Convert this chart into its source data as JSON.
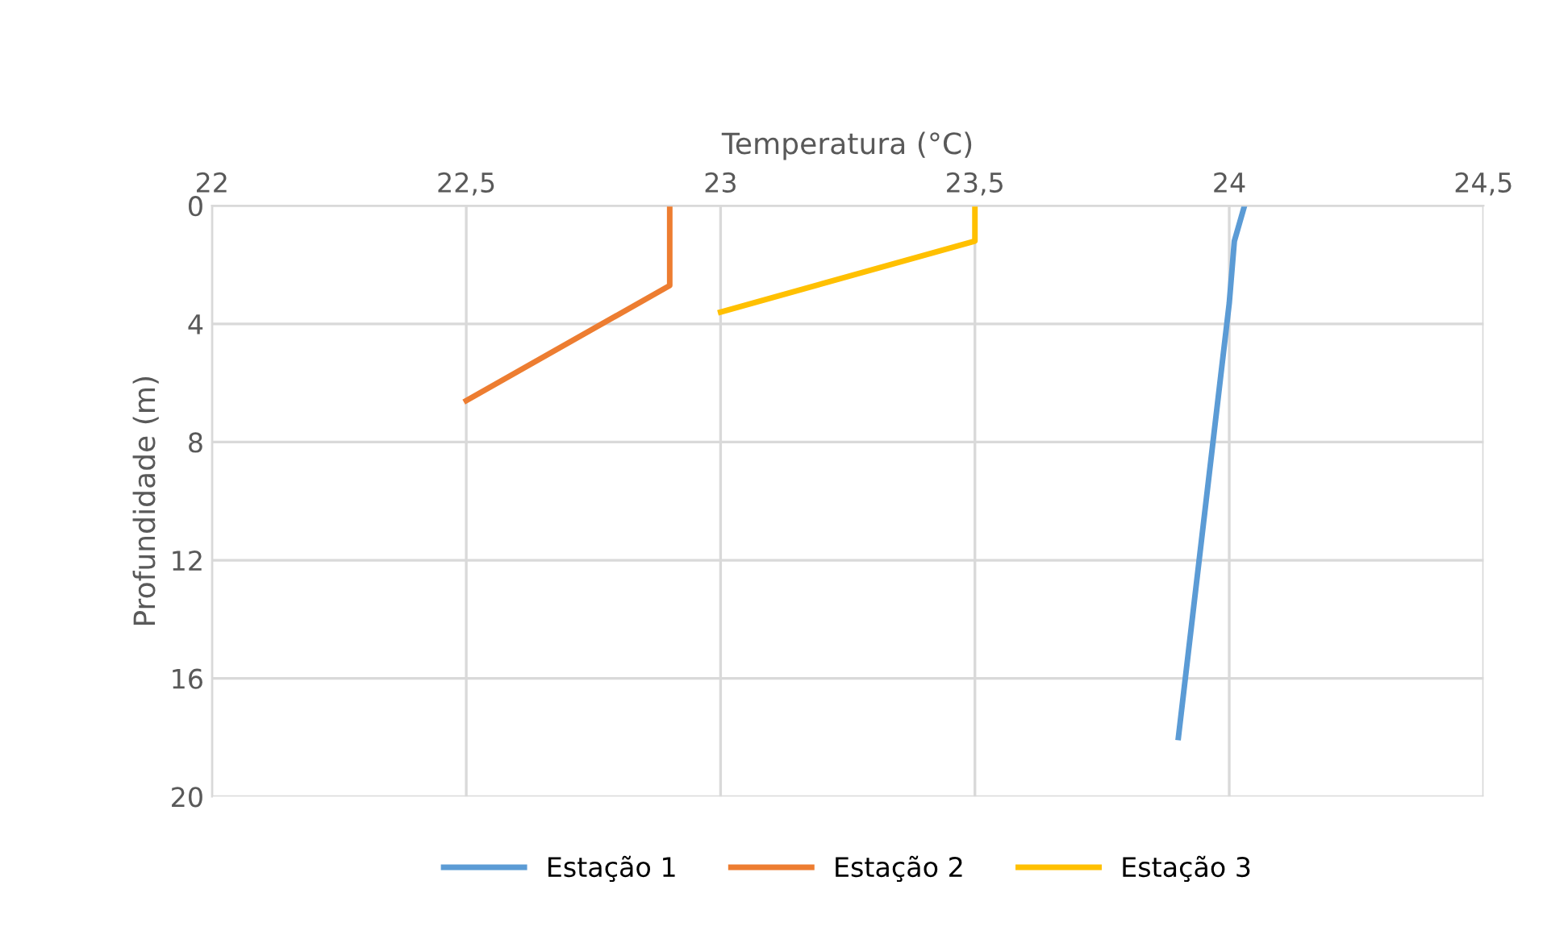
{
  "chart_data": {
    "type": "line",
    "xlabel": "Temperatura (°C)",
    "ylabel": "Profundidade (m)",
    "xlim": [
      22,
      24.5
    ],
    "xticks": [
      {
        "value": 22,
        "label": "22"
      },
      {
        "value": 22.5,
        "label": "22,5"
      },
      {
        "value": 23,
        "label": "23"
      },
      {
        "value": 23.5,
        "label": "23,5"
      },
      {
        "value": 24,
        "label": "24"
      },
      {
        "value": 24.5,
        "label": "24,5"
      }
    ],
    "ylim": [
      20,
      0
    ],
    "yticks": [
      0,
      4,
      8,
      12,
      16,
      20
    ],
    "grid": true,
    "legend": "bottom",
    "marker": "none",
    "line_style": "solid",
    "series": [
      {
        "name": "Estação 1",
        "color": "#5b9bd5",
        "x": [
          24.03,
          24.01,
          24.0,
          23.9
        ],
        "values": [
          0,
          1.2,
          3.3,
          18
        ]
      },
      {
        "name": "Estação 2",
        "color": "#ed7d31",
        "x": [
          22.9,
          22.9,
          22.5
        ],
        "values": [
          0,
          2.7,
          6.6
        ]
      },
      {
        "name": "Estação 3",
        "color": "#ffc000",
        "x": [
          23.5,
          23.5,
          23.0
        ],
        "values": [
          0,
          1.2,
          3.6
        ]
      }
    ]
  }
}
